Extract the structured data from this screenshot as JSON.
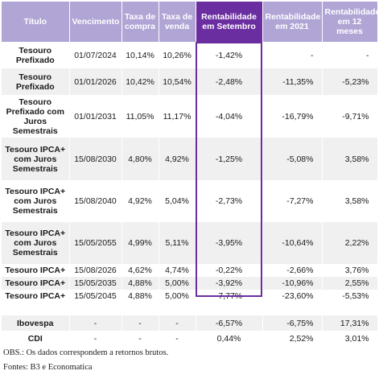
{
  "header": {
    "col1": "Título",
    "col2": "Vencimento",
    "col3": "Taxa de compra",
    "col4": "Taxa de venda",
    "col5": "Rentabilidade em Setembro",
    "col6": "Rentabilidade em 2021",
    "col7": "Rentabilidade em 12 meses"
  },
  "rows": [
    {
      "title": "Tesouro Prefixado",
      "venc": "01/07/2024",
      "compra": "10,14%",
      "venda": "10,26%",
      "setembro": "-1,42%",
      "ano": "-",
      "meses12": "-"
    },
    {
      "title": "Tesouro Prefixado",
      "venc": "01/01/2026",
      "compra": "10,42%",
      "venda": "10,54%",
      "setembro": "-2,48%",
      "ano": "-11,35%",
      "meses12": "-5,23%"
    },
    {
      "title": "Tesouro Prefixado com Juros Semestrais",
      "venc": "01/01/2031",
      "compra": "11,05%",
      "venda": "11,17%",
      "setembro": "-4,04%",
      "ano": "-16,79%",
      "meses12": "-9,71%"
    },
    {
      "title": "Tesouro IPCA+ com Juros Semestrais",
      "venc": "15/08/2030",
      "compra": "4,80%",
      "venda": "4,92%",
      "setembro": "-1,25%",
      "ano": "-5,08%",
      "meses12": "3,58%"
    },
    {
      "title": "Tesouro IPCA+ com Juros Semestrais",
      "venc": "15/08/2040",
      "compra": "4,92%",
      "venda": "5,04%",
      "setembro": "-2,73%",
      "ano": "-7,27%",
      "meses12": "3,58%"
    },
    {
      "title": "Tesouro IPCA+ com Juros Semestrais",
      "venc": "15/05/2055",
      "compra": "4,99%",
      "venda": "5,11%",
      "setembro": "-3,95%",
      "ano": "-10,64%",
      "meses12": "2,22%"
    },
    {
      "title": "Tesouro IPCA+",
      "venc": "15/08/2026",
      "compra": "4,62%",
      "venda": "4,74%",
      "setembro": "-0,22%",
      "ano": "-2,66%",
      "meses12": "3,76%"
    },
    {
      "title": "Tesouro IPCA+",
      "venc": "15/05/2035",
      "compra": "4,88%",
      "venda": "5,00%",
      "setembro": "-3,92%",
      "ano": "-10,96%",
      "meses12": "2,55%"
    },
    {
      "title": "Tesouro IPCA+",
      "venc": "15/05/2045",
      "compra": "4,88%",
      "venda": "5,00%",
      "setembro": "-7,77%",
      "ano": "-23,60%",
      "meses12": "-5,53%"
    }
  ],
  "benchmarks": [
    {
      "title": "Ibovespa",
      "venc": "-",
      "compra": "-",
      "venda": "-",
      "setembro": "-6,57%",
      "ano": "-6,75%",
      "meses12": "17,31%"
    },
    {
      "title": "CDI",
      "venc": "-",
      "compra": "-",
      "venda": "-",
      "setembro": "0,44%",
      "ano": "2,52%",
      "meses12": "3,01%"
    }
  ],
  "notes": {
    "obs": "OBS.: Os dados correspondem a retornos brutos.",
    "fontes": "Fontes: B3 e Economatica"
  },
  "colors": {
    "header": "#b0a5d5",
    "highlight": "#6a2ea0",
    "stripe": "#f0f0f0"
  }
}
